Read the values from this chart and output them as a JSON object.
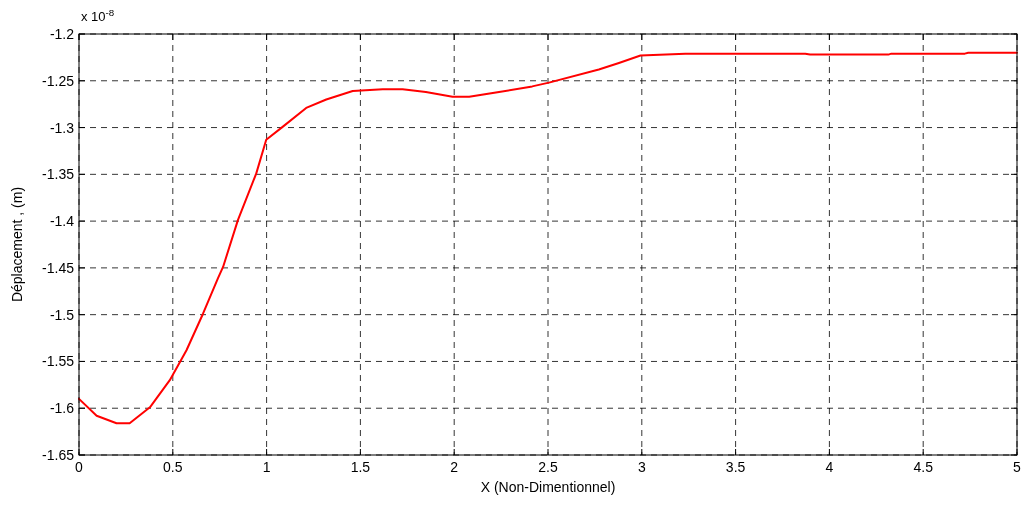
{
  "chart_data": {
    "type": "line",
    "xlabel": "X (Non-Dimentionnel)",
    "ylabel": "Déplacement , (m)",
    "annotations": [
      "x 10$^{-8}$"
    ],
    "xlim": [
      0,
      5
    ],
    "xticks": [
      0,
      0.5,
      1,
      1.5,
      2,
      2.5,
      3,
      3.5,
      4,
      4.5,
      5
    ],
    "ylim": [
      -1.65,
      -1.2
    ],
    "yticks": [
      -1.65,
      -1.6,
      -1.55,
      -1.5,
      -1.45,
      -1.4,
      -1.35,
      -1.3,
      -1.25,
      -1.2
    ],
    "grid": true,
    "line_style": "solid",
    "series": [
      {
        "color": "#ff0000",
        "x": [
          0,
          0.094,
          0.2,
          0.27,
          0.378,
          0.484,
          0.573,
          0.661,
          0.741,
          0.768,
          0.847,
          0.945,
          0.998,
          1.087,
          1.211,
          1.318,
          1.459,
          1.619,
          1.725,
          1.849,
          1.991,
          2.08,
          2.239,
          2.416,
          2.505,
          2.771,
          2.878,
          2.993,
          3.232,
          3.871,
          3.897,
          4.314,
          4.33,
          4.722,
          4.74,
          5
        ],
        "values": [
          -1.59,
          -1.608,
          -1.616,
          -1.616,
          -1.599,
          -1.57,
          -1.538,
          -1.499,
          -1.461,
          -1.449,
          -1.399,
          -1.349,
          -1.313,
          -1.299,
          -1.279,
          -1.27,
          -1.261,
          -1.259,
          -1.259,
          -1.262,
          -1.267,
          -1.267,
          -1.262,
          -1.256,
          -1.252,
          -1.238,
          -1.231,
          -1.223,
          -1.221,
          -1.221,
          -1.222,
          -1.222,
          -1.221,
          -1.221,
          -1.22,
          -1.22
        ]
      }
    ]
  }
}
